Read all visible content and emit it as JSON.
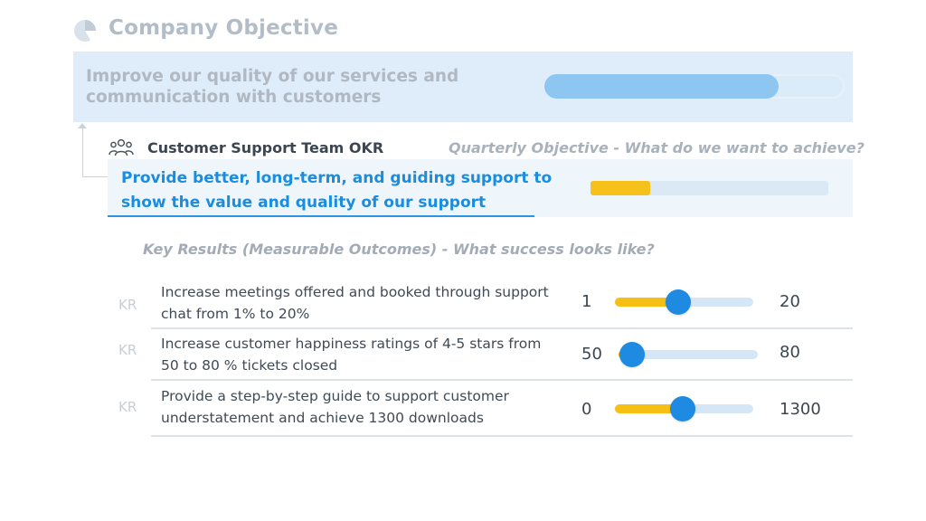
{
  "company": {
    "title": "Company Objective",
    "objective": "Improve our quality of our services and communication with customers",
    "progress": 0.78
  },
  "team": {
    "title": "Customer Support Team OKR",
    "quarterly_label": "Quarterly Objective - What do we want to achieve?",
    "objective": "Provide better, long-term, and guiding support to show the value and quality of our support",
    "progress": 0.25
  },
  "key_results": {
    "heading": "Key Results (Measurable Outcomes) - What success looks like?",
    "tag": "KR",
    "items": [
      {
        "text": "Increase meetings offered and booked through support chat from 1% to 20%",
        "min": "1",
        "max": "20",
        "progress": 0.46
      },
      {
        "text": "Increase customer happiness ratings of 4-5 stars from 50 to 80 % tickets closed",
        "min": "50",
        "max": "80",
        "progress": 0.1
      },
      {
        "text": "Provide a step-by-step guide to support customer understatement and achieve 1300 downloads",
        "min": "0",
        "max": "1300",
        "progress": 0.49
      }
    ]
  },
  "colors": {
    "accent": "#1e8ae2",
    "progress_yellow": "#f6bf13",
    "company_progress": "#8dc6f1"
  },
  "icons": {
    "company": "pie-chart-icon",
    "team": "team-icon"
  }
}
